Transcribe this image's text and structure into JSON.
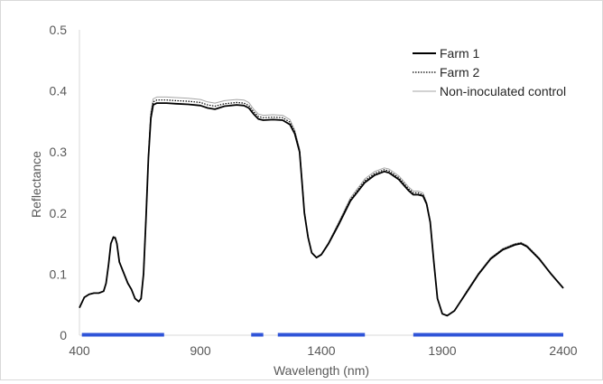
{
  "chart_data": {
    "type": "line",
    "title": "",
    "xlabel": "Wavelength (nm)",
    "ylabel": "Reflectance",
    "xlim": [
      400,
      2400
    ],
    "ylim": [
      0,
      0.5
    ],
    "x_ticks": [
      400,
      900,
      1400,
      1900,
      2400
    ],
    "y_ticks": [
      0,
      0.1,
      0.2,
      0.3,
      0.4,
      0.5
    ],
    "x_tick_labels": [
      "400",
      "900",
      "1400",
      "1900",
      "2400"
    ],
    "y_tick_labels": [
      "0",
      "0.1",
      "0.2",
      "0.3",
      "0.4",
      "0.5"
    ],
    "grid": false,
    "legend_position": "top-right",
    "series": [
      {
        "name": "Farm 1",
        "style": "solid",
        "color": "#000000",
        "points": [
          [
            400,
            0.045
          ],
          [
            420,
            0.062
          ],
          [
            440,
            0.067
          ],
          [
            460,
            0.069
          ],
          [
            480,
            0.069
          ],
          [
            500,
            0.072
          ],
          [
            510,
            0.085
          ],
          [
            520,
            0.115
          ],
          [
            530,
            0.15
          ],
          [
            540,
            0.16
          ],
          [
            548,
            0.159
          ],
          [
            555,
            0.15
          ],
          [
            565,
            0.12
          ],
          [
            580,
            0.105
          ],
          [
            600,
            0.085
          ],
          [
            615,
            0.075
          ],
          [
            630,
            0.06
          ],
          [
            645,
            0.055
          ],
          [
            655,
            0.06
          ],
          [
            665,
            0.1
          ],
          [
            675,
            0.19
          ],
          [
            685,
            0.29
          ],
          [
            695,
            0.355
          ],
          [
            705,
            0.377
          ],
          [
            720,
            0.38
          ],
          [
            760,
            0.38
          ],
          [
            800,
            0.379
          ],
          [
            850,
            0.378
          ],
          [
            900,
            0.376
          ],
          [
            930,
            0.372
          ],
          [
            960,
            0.37
          ],
          [
            1000,
            0.375
          ],
          [
            1050,
            0.377
          ],
          [
            1080,
            0.376
          ],
          [
            1100,
            0.372
          ],
          [
            1120,
            0.362
          ],
          [
            1140,
            0.354
          ],
          [
            1160,
            0.352
          ],
          [
            1200,
            0.353
          ],
          [
            1240,
            0.352
          ],
          [
            1270,
            0.345
          ],
          [
            1290,
            0.33
          ],
          [
            1310,
            0.3
          ],
          [
            1320,
            0.25
          ],
          [
            1330,
            0.2
          ],
          [
            1345,
            0.16
          ],
          [
            1360,
            0.135
          ],
          [
            1380,
            0.127
          ],
          [
            1400,
            0.132
          ],
          [
            1430,
            0.15
          ],
          [
            1470,
            0.18
          ],
          [
            1520,
            0.22
          ],
          [
            1580,
            0.25
          ],
          [
            1620,
            0.262
          ],
          [
            1660,
            0.268
          ],
          [
            1680,
            0.266
          ],
          [
            1720,
            0.255
          ],
          [
            1760,
            0.237
          ],
          [
            1780,
            0.23
          ],
          [
            1800,
            0.23
          ],
          [
            1820,
            0.228
          ],
          [
            1835,
            0.215
          ],
          [
            1850,
            0.185
          ],
          [
            1865,
            0.12
          ],
          [
            1880,
            0.06
          ],
          [
            1900,
            0.035
          ],
          [
            1920,
            0.032
          ],
          [
            1950,
            0.04
          ],
          [
            2000,
            0.07
          ],
          [
            2050,
            0.1
          ],
          [
            2100,
            0.125
          ],
          [
            2150,
            0.14
          ],
          [
            2200,
            0.148
          ],
          [
            2225,
            0.15
          ],
          [
            2250,
            0.145
          ],
          [
            2300,
            0.125
          ],
          [
            2350,
            0.1
          ],
          [
            2400,
            0.077
          ]
        ]
      },
      {
        "name": "Farm 2",
        "style": "dotted",
        "color": "#000000",
        "points": [
          [
            400,
            0.045
          ],
          [
            420,
            0.062
          ],
          [
            440,
            0.067
          ],
          [
            460,
            0.069
          ],
          [
            480,
            0.069
          ],
          [
            500,
            0.072
          ],
          [
            510,
            0.085
          ],
          [
            520,
            0.115
          ],
          [
            530,
            0.15
          ],
          [
            540,
            0.161
          ],
          [
            548,
            0.16
          ],
          [
            555,
            0.15
          ],
          [
            565,
            0.12
          ],
          [
            580,
            0.105
          ],
          [
            600,
            0.085
          ],
          [
            615,
            0.075
          ],
          [
            630,
            0.06
          ],
          [
            645,
            0.055
          ],
          [
            655,
            0.06
          ],
          [
            665,
            0.1
          ],
          [
            675,
            0.19
          ],
          [
            685,
            0.292
          ],
          [
            695,
            0.36
          ],
          [
            705,
            0.382
          ],
          [
            720,
            0.385
          ],
          [
            760,
            0.385
          ],
          [
            800,
            0.384
          ],
          [
            850,
            0.383
          ],
          [
            900,
            0.381
          ],
          [
            930,
            0.377
          ],
          [
            960,
            0.375
          ],
          [
            1000,
            0.379
          ],
          [
            1050,
            0.381
          ],
          [
            1080,
            0.38
          ],
          [
            1100,
            0.376
          ],
          [
            1120,
            0.366
          ],
          [
            1140,
            0.358
          ],
          [
            1160,
            0.356
          ],
          [
            1200,
            0.357
          ],
          [
            1240,
            0.356
          ],
          [
            1270,
            0.349
          ],
          [
            1290,
            0.333
          ],
          [
            1310,
            0.302
          ],
          [
            1320,
            0.252
          ],
          [
            1330,
            0.201
          ],
          [
            1345,
            0.161
          ],
          [
            1360,
            0.135
          ],
          [
            1380,
            0.127
          ],
          [
            1400,
            0.132
          ],
          [
            1430,
            0.151
          ],
          [
            1470,
            0.182
          ],
          [
            1520,
            0.222
          ],
          [
            1580,
            0.253
          ],
          [
            1620,
            0.265
          ],
          [
            1660,
            0.271
          ],
          [
            1680,
            0.269
          ],
          [
            1720,
            0.258
          ],
          [
            1760,
            0.24
          ],
          [
            1780,
            0.233
          ],
          [
            1800,
            0.233
          ],
          [
            1820,
            0.23
          ],
          [
            1835,
            0.216
          ],
          [
            1850,
            0.186
          ],
          [
            1865,
            0.12
          ],
          [
            1880,
            0.06
          ],
          [
            1900,
            0.035
          ],
          [
            1920,
            0.032
          ],
          [
            1950,
            0.04
          ],
          [
            2000,
            0.071
          ],
          [
            2050,
            0.101
          ],
          [
            2100,
            0.126
          ],
          [
            2150,
            0.141
          ],
          [
            2200,
            0.149
          ],
          [
            2225,
            0.151
          ],
          [
            2250,
            0.146
          ],
          [
            2300,
            0.126
          ],
          [
            2350,
            0.1
          ],
          [
            2400,
            0.077
          ]
        ]
      },
      {
        "name": "Non-inoculated control",
        "style": "solid",
        "color": "#a6a6a6",
        "points": [
          [
            400,
            0.045
          ],
          [
            420,
            0.062
          ],
          [
            440,
            0.067
          ],
          [
            460,
            0.069
          ],
          [
            480,
            0.069
          ],
          [
            500,
            0.072
          ],
          [
            510,
            0.085
          ],
          [
            520,
            0.115
          ],
          [
            530,
            0.15
          ],
          [
            540,
            0.162
          ],
          [
            548,
            0.161
          ],
          [
            555,
            0.151
          ],
          [
            565,
            0.121
          ],
          [
            580,
            0.106
          ],
          [
            600,
            0.086
          ],
          [
            615,
            0.076
          ],
          [
            630,
            0.061
          ],
          [
            645,
            0.056
          ],
          [
            655,
            0.061
          ],
          [
            665,
            0.102
          ],
          [
            675,
            0.194
          ],
          [
            685,
            0.297
          ],
          [
            695,
            0.366
          ],
          [
            705,
            0.387
          ],
          [
            720,
            0.39
          ],
          [
            760,
            0.39
          ],
          [
            800,
            0.389
          ],
          [
            850,
            0.388
          ],
          [
            900,
            0.386
          ],
          [
            930,
            0.382
          ],
          [
            960,
            0.38
          ],
          [
            1000,
            0.384
          ],
          [
            1050,
            0.386
          ],
          [
            1080,
            0.385
          ],
          [
            1100,
            0.381
          ],
          [
            1120,
            0.37
          ],
          [
            1140,
            0.362
          ],
          [
            1160,
            0.36
          ],
          [
            1200,
            0.361
          ],
          [
            1240,
            0.36
          ],
          [
            1270,
            0.353
          ],
          [
            1290,
            0.336
          ],
          [
            1310,
            0.305
          ],
          [
            1320,
            0.254
          ],
          [
            1330,
            0.203
          ],
          [
            1345,
            0.162
          ],
          [
            1360,
            0.136
          ],
          [
            1380,
            0.128
          ],
          [
            1400,
            0.133
          ],
          [
            1430,
            0.152
          ],
          [
            1470,
            0.184
          ],
          [
            1520,
            0.225
          ],
          [
            1580,
            0.256
          ],
          [
            1620,
            0.268
          ],
          [
            1660,
            0.274
          ],
          [
            1680,
            0.272
          ],
          [
            1720,
            0.261
          ],
          [
            1760,
            0.243
          ],
          [
            1780,
            0.236
          ],
          [
            1800,
            0.236
          ],
          [
            1820,
            0.233
          ],
          [
            1835,
            0.218
          ],
          [
            1850,
            0.187
          ],
          [
            1865,
            0.121
          ],
          [
            1880,
            0.06
          ],
          [
            1900,
            0.035
          ],
          [
            1920,
            0.032
          ],
          [
            1950,
            0.04
          ],
          [
            2000,
            0.072
          ],
          [
            2050,
            0.102
          ],
          [
            2100,
            0.127
          ],
          [
            2150,
            0.142
          ],
          [
            2200,
            0.15
          ],
          [
            2225,
            0.152
          ],
          [
            2250,
            0.147
          ],
          [
            2300,
            0.127
          ],
          [
            2350,
            0.101
          ],
          [
            2400,
            0.077
          ]
        ]
      }
    ],
    "highlight_color": "#2f54d8",
    "highlight_ranges": [
      [
        410,
        750
      ],
      [
        1110,
        1160
      ],
      [
        1220,
        1580
      ],
      [
        1780,
        2400
      ]
    ]
  }
}
